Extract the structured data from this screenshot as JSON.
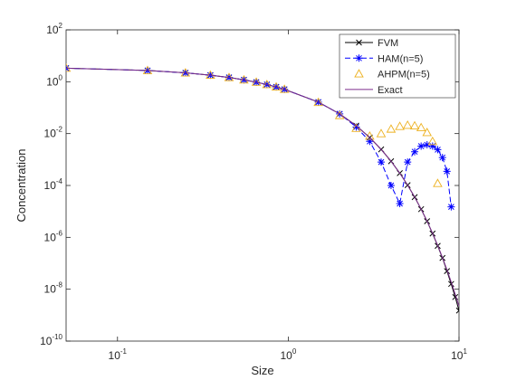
{
  "chart_data": {
    "type": "line",
    "xlabel": "Size",
    "ylabel": "Concentration",
    "xscale": "log",
    "yscale": "log",
    "xlim": [
      0.05,
      10
    ],
    "ylim": [
      1e-10,
      100
    ],
    "xticks": [
      {
        "value": 0.1,
        "label": "10",
        "exponent": "-1"
      },
      {
        "value": 1,
        "label": "10",
        "exponent": "0"
      },
      {
        "value": 10,
        "label": "10",
        "exponent": "1"
      }
    ],
    "yticks": [
      {
        "value": 1e-10,
        "label": "10",
        "exponent": "-10"
      },
      {
        "value": 1e-08,
        "label": "10",
        "exponent": "-8"
      },
      {
        "value": 1e-06,
        "label": "10",
        "exponent": "-6"
      },
      {
        "value": 0.0001,
        "label": "10",
        "exponent": "-4"
      },
      {
        "value": 0.01,
        "label": "10",
        "exponent": "-2"
      },
      {
        "value": 1,
        "label": "10",
        "exponent": "0"
      },
      {
        "value": 100,
        "label": "10",
        "exponent": "2"
      }
    ],
    "legend": "upper right",
    "x": [
      0.05,
      0.15,
      0.25,
      0.35,
      0.45,
      0.55,
      0.65,
      0.75,
      0.85,
      0.95,
      1.5,
      2,
      2.5,
      3,
      3.5,
      4,
      4.5,
      5,
      5.5,
      6,
      6.5,
      7,
      7.5,
      8,
      8.5,
      9,
      9.5,
      10
    ],
    "series": [
      {
        "name": "FVM",
        "color": "#000000",
        "marker": "x",
        "line": "solid",
        "values": [
          3.34,
          2.71,
          2.2,
          1.79,
          1.46,
          1.18,
          0.96,
          0.78,
          0.63,
          0.51,
          0.164,
          0.0576,
          0.0202,
          0.00707,
          0.00246,
          0.000858,
          0.000298,
          0.000103,
          3.55e-05,
          1.22e-05,
          4.2e-06,
          1.4e-06,
          4.7e-07,
          1.6e-07,
          5e-08,
          1.6e-08,
          5e-09,
          1.5e-09
        ]
      },
      {
        "name": "HAM(n=5)",
        "color": "#0000ff",
        "marker": "star",
        "line": "dashed",
        "values": [
          3.34,
          2.71,
          2.2,
          1.79,
          1.46,
          1.18,
          0.96,
          0.78,
          0.63,
          0.51,
          0.164,
          0.0576,
          0.018,
          0.005,
          0.0008,
          0.0001,
          2e-05,
          0.0008,
          0.002,
          0.0033,
          0.0037,
          0.0033,
          0.0024,
          0.0012,
          0.00035,
          1.5e-05,
          null,
          null
        ]
      },
      {
        "name": "AHPM(n=5)",
        "color": "#edb120",
        "marker": "triangle",
        "line": "none",
        "values": [
          3.34,
          2.71,
          2.2,
          1.79,
          1.46,
          1.18,
          0.96,
          0.78,
          0.63,
          0.51,
          0.16,
          0.05,
          0.016,
          0.008,
          0.01,
          0.015,
          0.019,
          0.021,
          0.02,
          0.017,
          0.011,
          0.005,
          0.00012,
          null,
          null,
          null,
          null,
          null
        ]
      },
      {
        "name": "Exact",
        "color": "#7e2f8e",
        "marker": "none",
        "line": "solid",
        "values": [
          3.34,
          2.71,
          2.2,
          1.79,
          1.46,
          1.18,
          0.96,
          0.78,
          0.63,
          0.51,
          0.164,
          0.0576,
          0.0202,
          0.00707,
          0.00246,
          0.000858,
          0.000298,
          0.000103,
          3.55e-05,
          1.22e-05,
          4.2e-06,
          1.44e-06,
          4.9e-07,
          1.66e-07,
          5.6e-08,
          1.91e-08,
          6.4e-09,
          2.2e-09
        ]
      }
    ]
  }
}
